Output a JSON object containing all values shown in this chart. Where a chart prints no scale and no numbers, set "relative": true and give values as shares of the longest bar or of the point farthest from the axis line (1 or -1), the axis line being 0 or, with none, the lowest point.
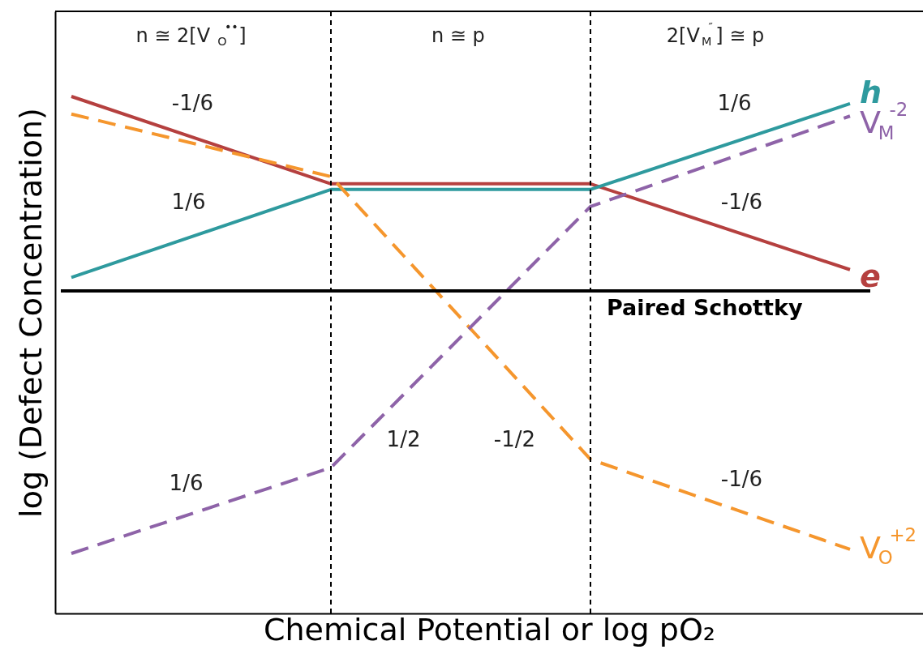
{
  "chart_data": {
    "type": "line",
    "relative": true,
    "xlabel": "Chemical Potential or log pO₂",
    "ylabel": "log (Defect Concentration)",
    "categories": [
      null,
      null,
      null,
      null
    ],
    "series": [
      {
        "name": "e",
        "color": "#b5403f",
        "line_style": "solid",
        "values": [
          1.0,
          0.831,
          0.831,
          0.665
        ]
      },
      {
        "name": "h",
        "color": "#2e9a9e",
        "line_style": "solid",
        "values": [
          0.65,
          0.82,
          0.82,
          0.986
        ]
      },
      {
        "name": "V$_{O}$$^{+2}$",
        "color": "#f5962d",
        "line_style": "dashed",
        "values": [
          0.966,
          0.845,
          0.298,
          0.124
        ]
      },
      {
        "name": "V$_{M}$$^{-2}$",
        "color": "#8e63a8",
        "line_style": "dashed",
        "values": [
          0.116,
          0.282,
          0.787,
          0.962
        ]
      }
    ],
    "ref_lines": [
      {
        "axis": "y",
        "value": 0.624,
        "label": "Paired Schottky",
        "color": "#000000",
        "line_style": "solid"
      }
    ],
    "annotations": [
      "n ≅ 2[V$_{O}$$^{••}$]",
      "n ≅ p",
      "2[V$_{M}$$^{″}$] ≅ p",
      "-1/6",
      "1/6",
      "1/2",
      "-1/2",
      "1/6",
      "-1/6",
      "1/6",
      "-1/6"
    ],
    "grid": false
  }
}
